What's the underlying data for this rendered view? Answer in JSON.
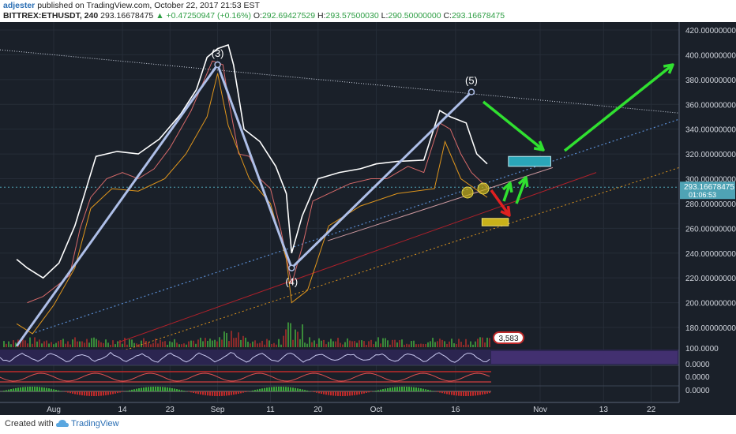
{
  "header": {
    "author": "adjester",
    "published": "published on TradingView.com, October 22, 2017 21:53 EST",
    "symbol": "BITTREX:ETHUSDT, 240",
    "last": "293.16678475",
    "change": "+0.47250947 (+0.16%)",
    "open_label": "O:",
    "open": "292.69427529",
    "high_label": "H:",
    "high": "293.57500030",
    "low_label": "L:",
    "low": "290.50000000",
    "close_label": "C:",
    "close": "293.16678475"
  },
  "footer": {
    "created_with": "Created with",
    "brand": "TradingView"
  },
  "colors": {
    "background": "#1a2029",
    "price": "#ffffff",
    "wave": "#aebfe8",
    "orange": "#e0961c",
    "target_box": "#2aa6b8",
    "support_box": "#c9b21a",
    "green_arrow": "#30e030",
    "red_arrow": "#e02020",
    "volume_up": "#3a8a3a",
    "volume_down": "#8a2a2a"
  },
  "chart_data": {
    "type": "line",
    "title": "",
    "xlabel": "",
    "ylabel": "",
    "ylim": [
      160,
      425
    ],
    "grid": true,
    "y_ticks": [
      "420.00000000",
      "400.00000000",
      "380.00000000",
      "360.00000000",
      "340.00000000",
      "320.00000000",
      "300.00000000",
      "280.00000000",
      "260.00000000",
      "240.00000000",
      "220.00000000",
      "200.00000000",
      "180.00000000"
    ],
    "y_tick_values": [
      420,
      400,
      380,
      360,
      340,
      320,
      300,
      280,
      260,
      240,
      220,
      200,
      180
    ],
    "x_ticks": [
      "Aug",
      "14",
      "23",
      "Sep",
      "11",
      "20",
      "Oct",
      "16",
      "Nov",
      "13",
      "22"
    ],
    "x_tick_values": [
      "2017-08-01",
      "2017-08-14",
      "2017-08-23",
      "2017-09-01",
      "2017-09-11",
      "2017-09-20",
      "2017-10-01",
      "2017-10-16",
      "2017-11-01",
      "2017-11-13",
      "2017-11-22"
    ],
    "price_label": "293.16678475",
    "time_label": "01:06:53",
    "series": [
      {
        "points": [
          [
            "2017-07-27",
            200
          ],
          [
            "2017-07-30",
            205
          ],
          [
            "2017-08-02",
            215
          ],
          [
            "2017-08-04",
            222
          ],
          [
            "2017-08-06",
            260
          ],
          [
            "2017-08-08",
            285
          ],
          [
            "2017-08-11",
            300
          ],
          [
            "2017-08-14",
            305
          ],
          [
            "2017-08-17",
            300
          ],
          [
            "2017-08-20",
            308
          ],
          [
            "2017-08-23",
            325
          ],
          [
            "2017-08-25",
            340
          ],
          [
            "2017-08-27",
            355
          ],
          [
            "2017-08-29",
            375
          ],
          [
            "2017-08-31",
            395
          ],
          [
            "2017-09-02",
            392
          ],
          [
            "2017-09-03",
            365
          ],
          [
            "2017-09-05",
            320
          ],
          [
            "2017-09-07",
            318
          ],
          [
            "2017-09-09",
            300
          ],
          [
            "2017-09-11",
            292
          ],
          [
            "2017-09-13",
            258
          ],
          [
            "2017-09-15",
            215
          ],
          [
            "2017-09-17",
            245
          ],
          [
            "2017-09-19",
            282
          ],
          [
            "2017-09-22",
            288
          ],
          [
            "2017-09-26",
            296
          ],
          [
            "2017-09-30",
            300
          ],
          [
            "2017-10-03",
            300
          ],
          [
            "2017-10-07",
            310
          ],
          [
            "2017-10-10",
            305
          ],
          [
            "2017-10-13",
            345
          ],
          [
            "2017-10-15",
            340
          ],
          [
            "2017-10-17",
            320
          ],
          [
            "2017-10-19",
            305
          ],
          [
            "2017-10-22",
            293
          ]
        ]
      },
      {
        "points": [
          [
            "2017-07-25",
            183
          ],
          [
            "2017-07-28",
            175
          ],
          [
            "2017-08-01",
            198
          ],
          [
            "2017-08-05",
            228
          ],
          [
            "2017-08-08",
            276
          ],
          [
            "2017-08-12",
            292
          ],
          [
            "2017-08-17",
            290
          ],
          [
            "2017-08-22",
            300
          ],
          [
            "2017-08-26",
            320
          ],
          [
            "2017-08-30",
            350
          ],
          [
            "2017-09-01",
            385
          ],
          [
            "2017-09-03",
            343
          ],
          [
            "2017-09-07",
            300
          ],
          [
            "2017-09-11",
            280
          ],
          [
            "2017-09-14",
            235
          ],
          [
            "2017-09-15",
            200
          ],
          [
            "2017-09-18",
            210
          ],
          [
            "2017-09-22",
            262
          ],
          [
            "2017-09-28",
            278
          ],
          [
            "2017-10-05",
            288
          ],
          [
            "2017-10-12",
            292
          ],
          [
            "2017-10-14",
            330
          ],
          [
            "2017-10-17",
            300
          ],
          [
            "2017-10-22",
            285
          ]
        ]
      },
      {
        "points": [
          [
            "2017-07-25",
            235
          ],
          [
            "2017-07-27",
            228
          ],
          [
            "2017-07-30",
            220
          ],
          [
            "2017-08-02",
            232
          ],
          [
            "2017-08-05",
            262
          ],
          [
            "2017-08-07",
            290
          ],
          [
            "2017-08-09",
            318
          ],
          [
            "2017-08-13",
            322
          ],
          [
            "2017-08-17",
            320
          ],
          [
            "2017-08-21",
            332
          ],
          [
            "2017-08-25",
            352
          ],
          [
            "2017-08-28",
            372
          ],
          [
            "2017-08-30",
            398
          ],
          [
            "2017-09-01",
            405
          ],
          [
            "2017-09-03",
            408
          ],
          [
            "2017-09-04",
            392
          ],
          [
            "2017-09-06",
            340
          ],
          [
            "2017-09-09",
            330
          ],
          [
            "2017-09-12",
            310
          ],
          [
            "2017-09-14",
            288
          ],
          [
            "2017-09-15",
            240
          ],
          [
            "2017-09-17",
            270
          ],
          [
            "2017-09-20",
            300
          ],
          [
            "2017-09-24",
            305
          ],
          [
            "2017-09-28",
            308
          ],
          [
            "2017-10-01",
            312
          ],
          [
            "2017-10-05",
            314
          ],
          [
            "2017-10-10",
            315
          ],
          [
            "2017-10-13",
            355
          ],
          [
            "2017-10-15",
            350
          ],
          [
            "2017-10-18",
            345
          ],
          [
            "2017-10-20",
            320
          ],
          [
            "2017-10-22",
            312
          ]
        ]
      }
    ],
    "wave_points": [
      [
        "2017-07-25",
        165
      ],
      [
        "2017-09-01",
        392
      ],
      [
        "2017-09-15",
        228
      ],
      [
        "2017-10-19",
        370
      ]
    ],
    "wave_labels": [
      "(3)",
      "(4)",
      "(5)"
    ],
    "target_zone": [
      [
        "2017-10-26",
        "2017-11-03"
      ],
      [
        310,
        318
      ]
    ],
    "support_zone": [
      [
        "2017-10-21",
        "2017-10-26"
      ],
      [
        262,
        268
      ]
    ],
    "volume_label": "3,583",
    "indicator_ticks": [
      "100.0000",
      "0.0000",
      "0.0000",
      "0.0000"
    ]
  }
}
